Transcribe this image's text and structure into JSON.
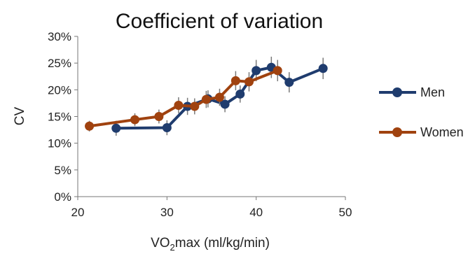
{
  "chart_data": {
    "type": "line",
    "title": "Coefficient of variation",
    "xlabel": {
      "pre": "VO",
      "sub": "2",
      "post": "max (ml/kg/min)"
    },
    "ylabel": "CV",
    "xlim": [
      20,
      50
    ],
    "ylim": [
      0,
      30
    ],
    "xticks": [
      "20",
      "30",
      "40",
      "50"
    ],
    "xtick_values": [
      20,
      30,
      40,
      50
    ],
    "yticks": [
      "0%",
      "5%",
      "10%",
      "15%",
      "20%",
      "25%",
      "30%"
    ],
    "ytick_values": [
      0,
      5,
      10,
      15,
      20,
      25,
      30
    ],
    "grid": false,
    "legend_position": "right",
    "series": [
      {
        "name": "Men",
        "color": "#1f3c6e",
        "x": [
          24.3,
          30.0,
          32.3,
          34.6,
          36.5,
          38.2,
          40.0,
          41.7,
          43.7,
          47.5
        ],
        "y": [
          12.8,
          12.9,
          16.9,
          18.3,
          17.3,
          19.2,
          23.6,
          24.2,
          21.4,
          24.0
        ],
        "err": [
          1.4,
          1.4,
          1.6,
          1.6,
          1.5,
          1.6,
          2.0,
          2.0,
          1.9,
          2.0
        ]
      },
      {
        "name": "Women",
        "color": "#a0420f",
        "x": [
          21.3,
          26.4,
          29.1,
          31.3,
          33.1,
          34.4,
          35.9,
          37.7,
          39.2,
          42.4
        ],
        "y": [
          13.2,
          14.4,
          15.0,
          17.1,
          16.9,
          18.2,
          18.6,
          21.7,
          21.5,
          23.6
        ],
        "err": [
          1.0,
          1.2,
          1.3,
          1.5,
          1.5,
          1.6,
          1.6,
          1.8,
          1.8,
          2.0
        ]
      }
    ]
  }
}
